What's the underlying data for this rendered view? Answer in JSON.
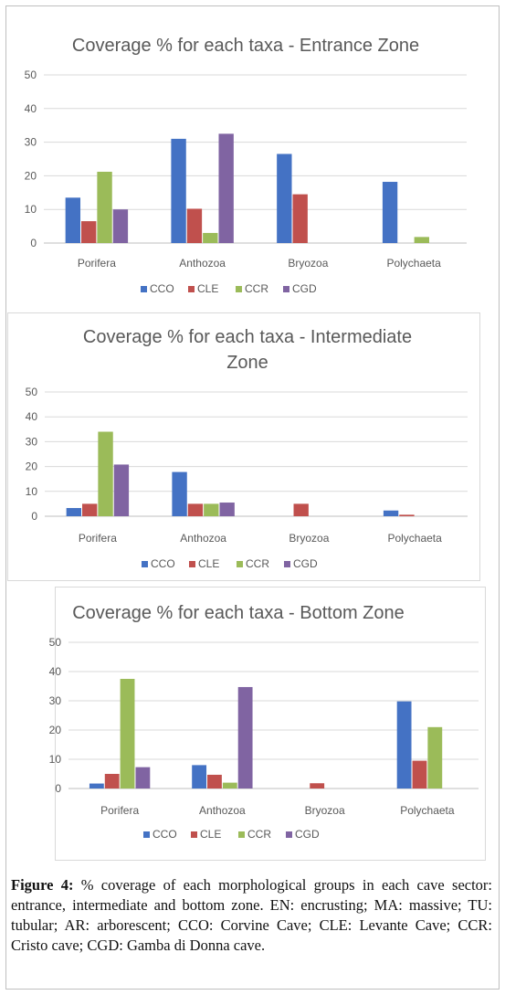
{
  "figure": {
    "caption_label": "Figure 4:",
    "caption_text": " % coverage of each morphological groups in each cave sector: entrance, intermediate and bottom zone. EN: encrusting; MA: massive; TU: tubular; AR: arborescent; CCO: Corvine Cave; CLE: Levante Cave; CCR: Cristo cave; CGD: Gamba di Donna cave."
  },
  "colors": {
    "CCO": "#4472c4",
    "CLE": "#c0504d",
    "CCR": "#9bbb59",
    "CGD": "#8064a2",
    "grid": "#d9d9d9",
    "axis": "#bfbfbf",
    "text": "#595959"
  },
  "chart_data": [
    {
      "type": "bar",
      "title_lines": [
        "Coverage % for each taxa - Entrance Zone"
      ],
      "categories": [
        "Porifera",
        "Anthozoa",
        "Bryozoa",
        "Polychaeta"
      ],
      "ylim": [
        0,
        50
      ],
      "yticks": [
        0,
        10,
        20,
        30,
        40,
        50
      ],
      "grid": true,
      "legend": "bottom",
      "series": [
        {
          "name": "CCO",
          "values": [
            13.5,
            31,
            26.5,
            18.2
          ]
        },
        {
          "name": "CLE",
          "values": [
            6.5,
            10.2,
            14.5,
            0
          ]
        },
        {
          "name": "CCR",
          "values": [
            21.2,
            3,
            0,
            1.8
          ]
        },
        {
          "name": "CGD",
          "values": [
            10,
            32.5,
            0,
            0
          ]
        }
      ]
    },
    {
      "type": "bar",
      "title_lines": [
        "Coverage % for each taxa - Intermediate",
        "Zone"
      ],
      "categories": [
        "Porifera",
        "Anthozoa",
        "Bryozoa",
        "Polychaeta"
      ],
      "ylim": [
        0,
        50
      ],
      "yticks": [
        0,
        10,
        20,
        30,
        40,
        50
      ],
      "grid": true,
      "legend": "bottom",
      "series": [
        {
          "name": "CCO",
          "values": [
            3.3,
            17.8,
            0,
            2.3
          ]
        },
        {
          "name": "CLE",
          "values": [
            5,
            5,
            5,
            0.6
          ]
        },
        {
          "name": "CCR",
          "values": [
            34,
            5,
            0,
            0
          ]
        },
        {
          "name": "CGD",
          "values": [
            20.8,
            5.5,
            0,
            0
          ]
        }
      ]
    },
    {
      "type": "bar",
      "title_lines": [
        "Coverage % for each taxa - Bottom Zone"
      ],
      "categories": [
        "Porifera",
        "Anthozoa",
        "Bryozoa",
        "Polychaeta"
      ],
      "ylim": [
        0,
        50
      ],
      "yticks": [
        0,
        10,
        20,
        30,
        40,
        50
      ],
      "grid": true,
      "legend": "bottom",
      "series": [
        {
          "name": "CCO",
          "values": [
            1.7,
            8,
            0,
            29.8
          ]
        },
        {
          "name": "CLE",
          "values": [
            5,
            4.7,
            1.8,
            9.5
          ]
        },
        {
          "name": "CCR",
          "values": [
            37.5,
            2,
            0,
            21
          ]
        },
        {
          "name": "CGD",
          "values": [
            7.3,
            34.7,
            0,
            0
          ]
        }
      ]
    }
  ]
}
